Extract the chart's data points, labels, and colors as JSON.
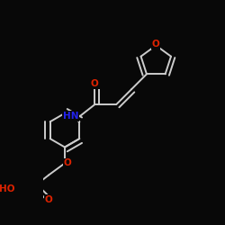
{
  "background_color": "#080808",
  "bond_color": "#cccccc",
  "bond_width": 1.4,
  "atom_colors": {
    "O": "#dd2200",
    "N": "#2222ee",
    "C": "#cccccc"
  },
  "font_size": 7.5
}
